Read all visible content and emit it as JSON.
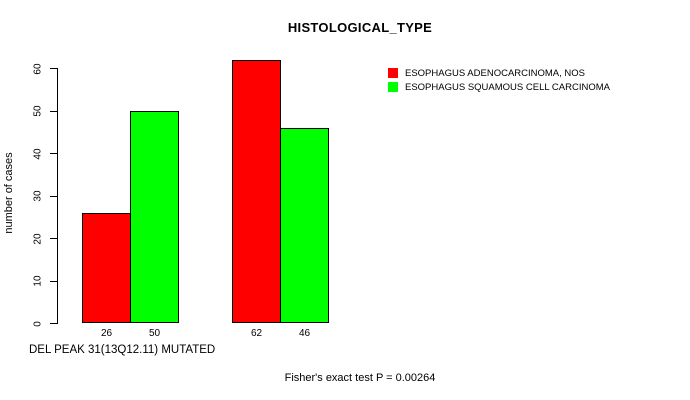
{
  "chart_data": {
    "type": "bar",
    "title": "HISTOLOGICAL_TYPE",
    "ylabel": "number of cases",
    "xlabel": "DEL PEAK 31(13Q12.11) MUTATED",
    "footer": "Fisher's exact test P = 0.00264",
    "ylim": [
      0,
      60
    ],
    "y_ticks": [
      0,
      10,
      20,
      30,
      40,
      50,
      60
    ],
    "grid": false,
    "legend_position": "top-right-inside",
    "series": [
      {
        "name": "ESOPHAGUS ADENOCARCINOMA, NOS",
        "color": "#FF0000",
        "values": [
          26,
          62
        ]
      },
      {
        "name": "ESOPHAGUS SQUAMOUS CELL CARCINOMA",
        "color": "#00FF00",
        "values": [
          50,
          46
        ]
      }
    ],
    "groups": [
      {
        "bars": [
          {
            "series": 0,
            "value": 26,
            "label": "26"
          },
          {
            "series": 1,
            "value": 50,
            "label": "50"
          }
        ]
      },
      {
        "bars": [
          {
            "series": 0,
            "value": 62,
            "label": "62"
          },
          {
            "series": 1,
            "value": 46,
            "label": "46"
          }
        ]
      }
    ]
  }
}
